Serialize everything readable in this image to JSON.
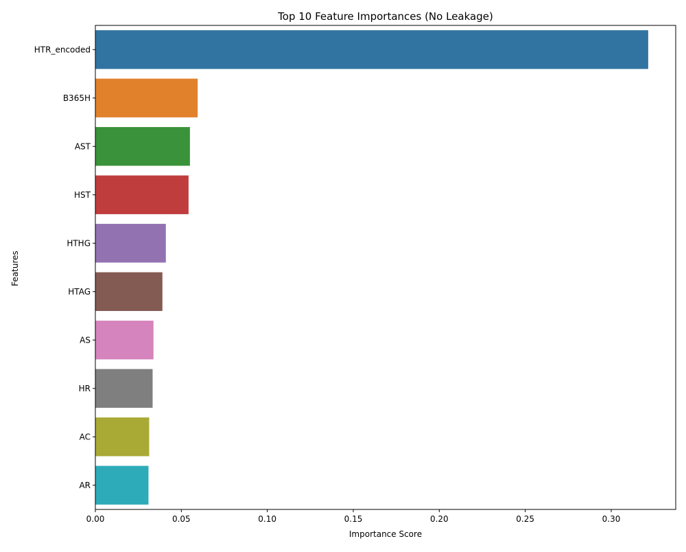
{
  "chart_data": {
    "type": "bar",
    "orientation": "horizontal",
    "title": "Top 10 Feature Importances (No Leakage)",
    "xlabel": "Importance Score",
    "ylabel": "Features",
    "categories": [
      "HTR_encoded",
      "B365H",
      "AST",
      "HST",
      "HTHG",
      "HTAG",
      "AS",
      "HR",
      "AC",
      "AR"
    ],
    "values": [
      0.3215,
      0.0595,
      0.055,
      0.0542,
      0.041,
      0.039,
      0.0338,
      0.0333,
      0.0313,
      0.0309
    ],
    "colors": [
      "#3274a1",
      "#e1812c",
      "#3a923a",
      "#c03d3e",
      "#9372b2",
      "#845b53",
      "#d684bd",
      "#7f7f7f",
      "#a9aa35",
      "#2eabb8"
    ],
    "xlim": [
      0,
      0.3375
    ],
    "xticks": [
      0.0,
      0.05,
      0.1,
      0.15,
      0.2,
      0.25,
      0.3
    ],
    "xtick_labels": [
      "0.00",
      "0.05",
      "0.10",
      "0.15",
      "0.20",
      "0.25",
      "0.30"
    ],
    "grid": false,
    "legend": "none"
  }
}
